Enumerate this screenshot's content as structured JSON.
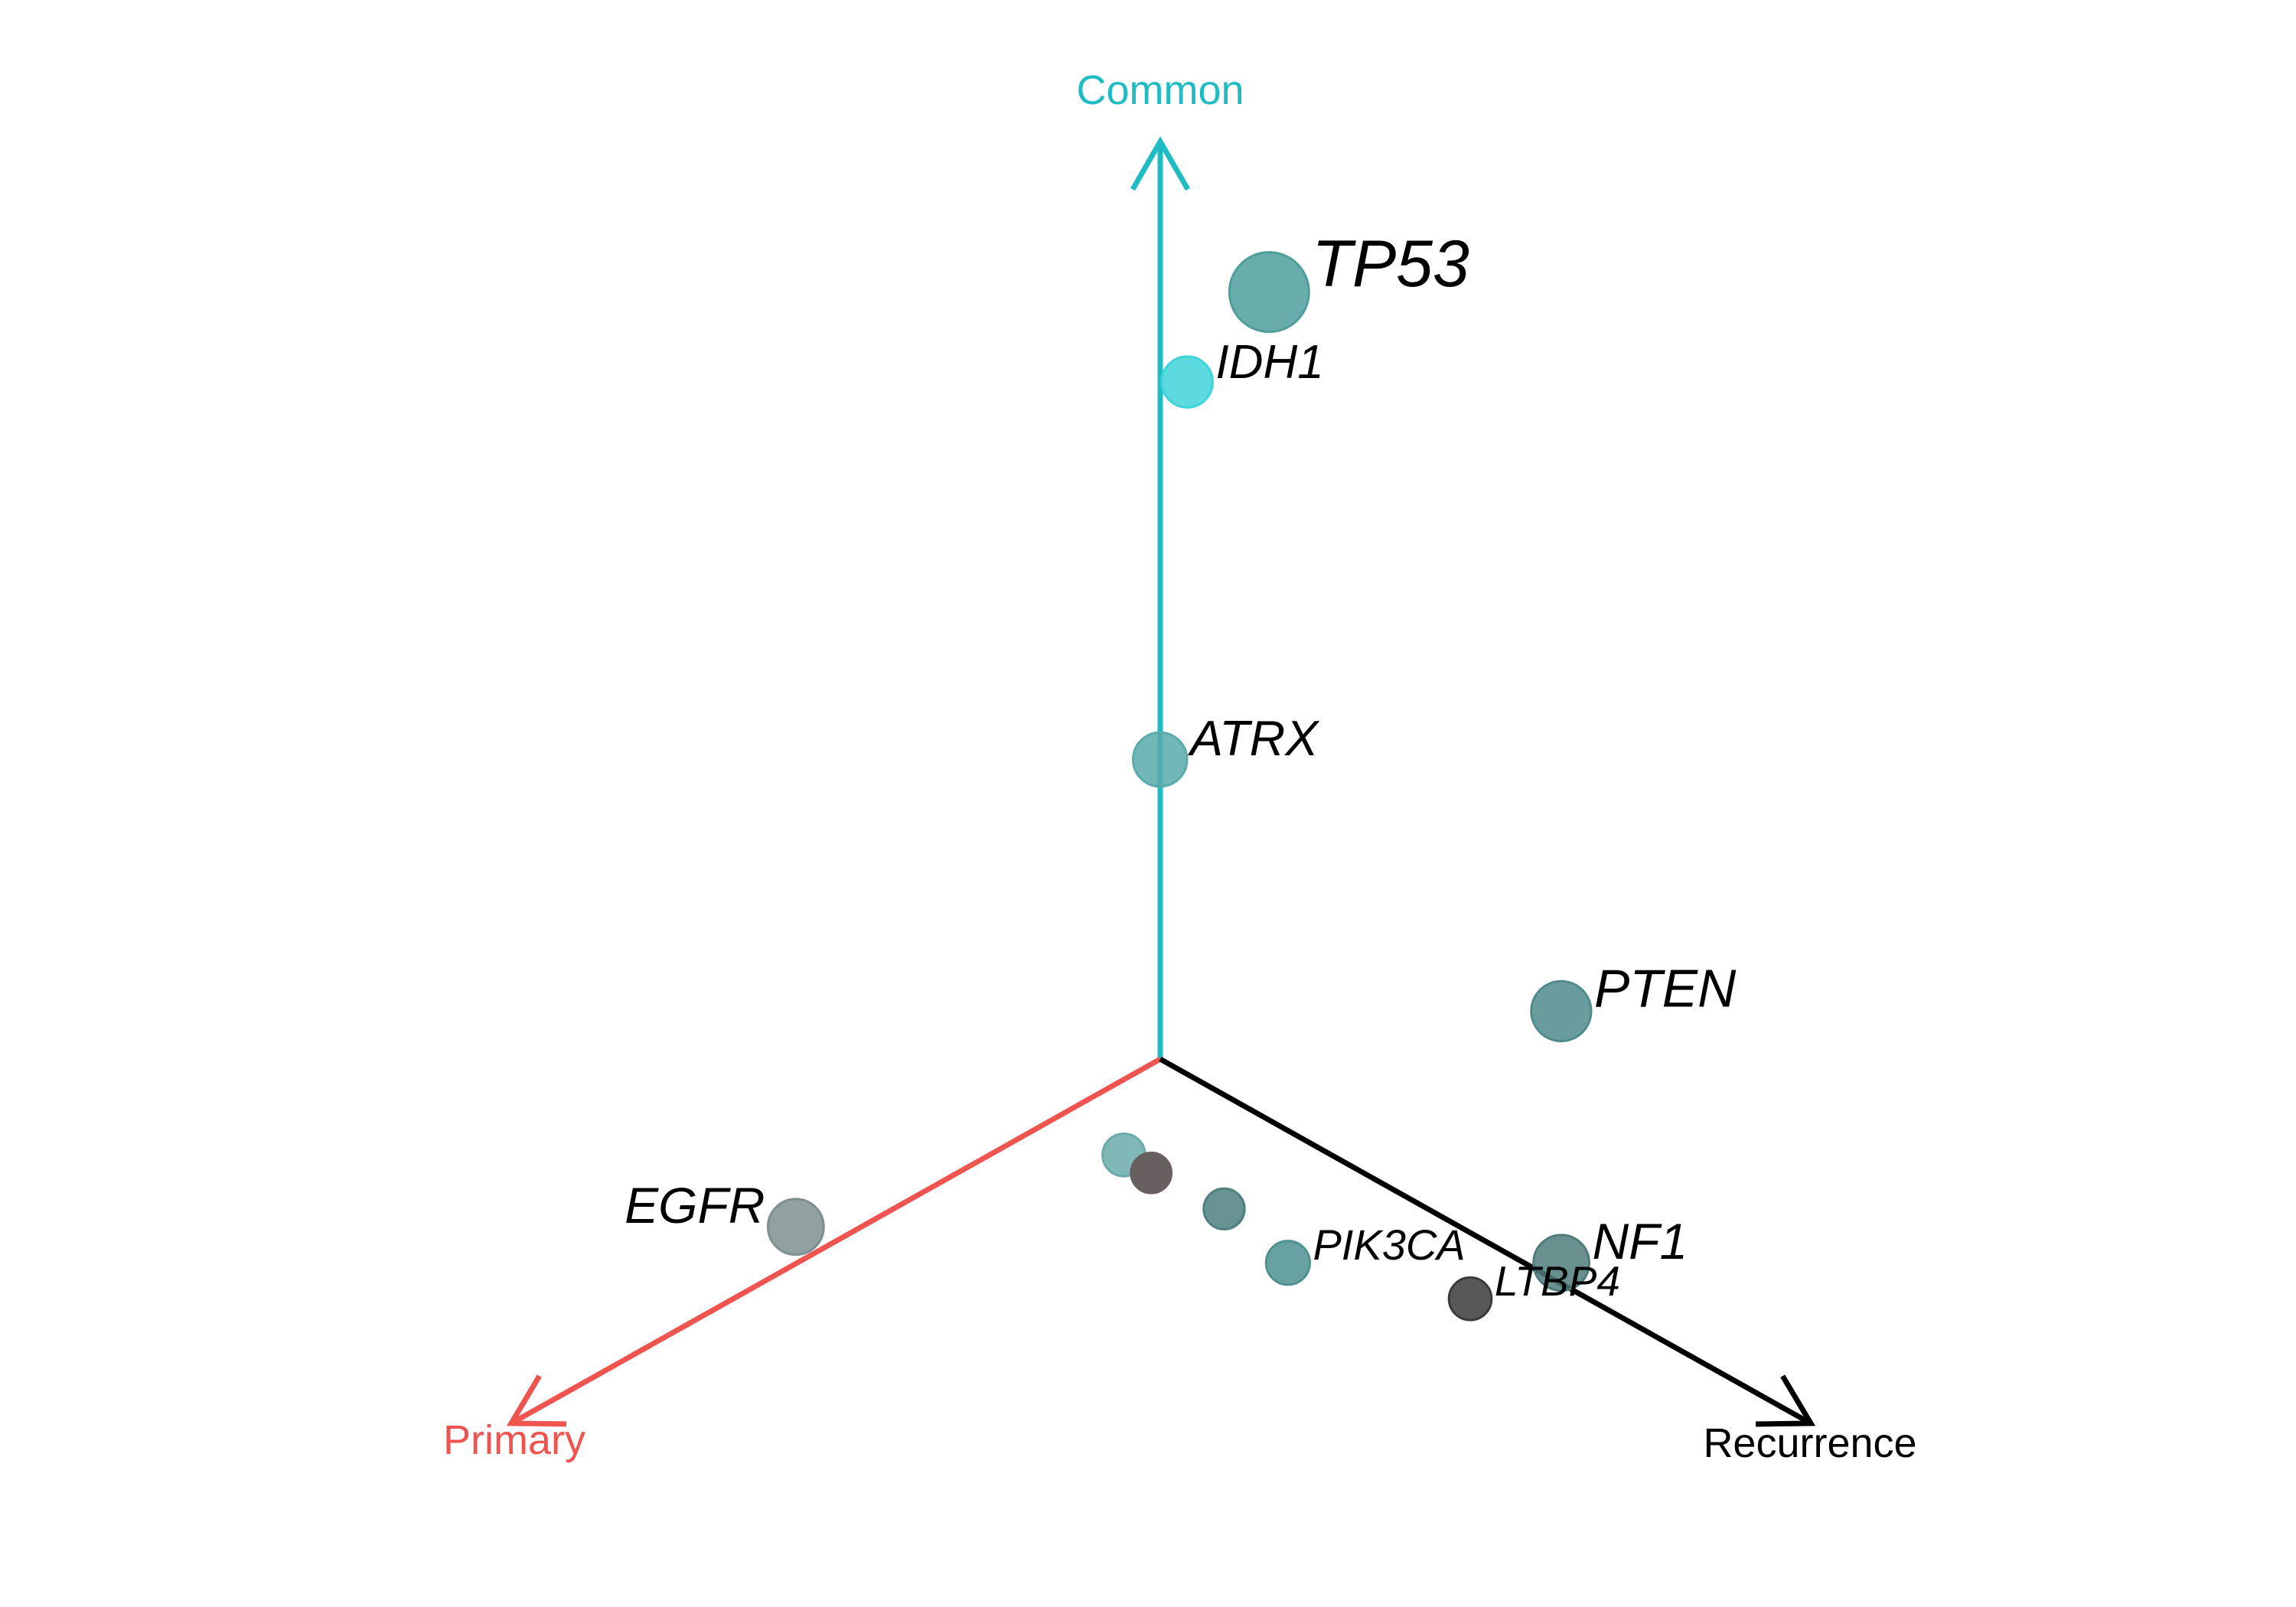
{
  "chart_data": {
    "type": "scatter",
    "axes": [
      {
        "key": "common",
        "label": "Common",
        "color": "#1fbcc4"
      },
      {
        "key": "primary",
        "label": "Primary",
        "color": "#f0544f"
      },
      {
        "key": "recurrence",
        "label": "Recurrence",
        "color": "#000000"
      }
    ],
    "points": [
      {
        "label": "TP53",
        "common": 0.76,
        "primary": 0.06,
        "recurrence": 0.18,
        "size": 1.0,
        "color": "#4e9e9c"
      },
      {
        "label": "IDH1",
        "common": 0.71,
        "primary": 0.13,
        "recurrence": 0.16,
        "size": 0.52,
        "color": "#3fd4db"
      },
      {
        "label": "ATRX",
        "common": 0.5,
        "primary": 0.25,
        "recurrence": 0.25,
        "size": 0.57,
        "color": "#59aaaa"
      },
      {
        "label": "PTEN",
        "common": 0.36,
        "primary": 0.1,
        "recurrence": 0.54,
        "size": 0.67,
        "color": "#4f8b8b"
      },
      {
        "label": "PIK3CA",
        "common": 0.22,
        "primary": 0.32,
        "recurrence": 0.46,
        "size": 0.4,
        "color": "#4d9191"
      },
      {
        "label": "NF1",
        "common": 0.22,
        "primary": 0.17,
        "recurrence": 0.61,
        "size": 0.6,
        "color": "#4f7c7b"
      },
      {
        "label": "EGFR",
        "common": 0.24,
        "primary": 0.58,
        "recurrence": 0.18,
        "size": 0.6,
        "color": "#7e8f8f"
      },
      {
        "label": "",
        "common": 0.28,
        "primary": 0.38,
        "recurrence": 0.34,
        "size": 0.38,
        "color": "#6aaaaa"
      },
      {
        "label": "",
        "common": 0.25,
        "primary": 0.34,
        "recurrence": 0.41,
        "size": 0.35,
        "color": "#4f7f7f"
      },
      {
        "label": "",
        "common": 0.27,
        "primary": 0.37,
        "recurrence": 0.36,
        "size": 0.34,
        "color": "#2b5553"
      },
      {
        "label": "",
        "common": 0.27,
        "primary": 0.37,
        "recurrence": 0.36,
        "size": 0.34,
        "color": "#6d5e5e"
      },
      {
        "label": "LTBP4",
        "common": 0.2,
        "primary": 0.23,
        "recurrence": 0.57,
        "size": 0.38,
        "color": "#3c3b3b"
      }
    ]
  }
}
